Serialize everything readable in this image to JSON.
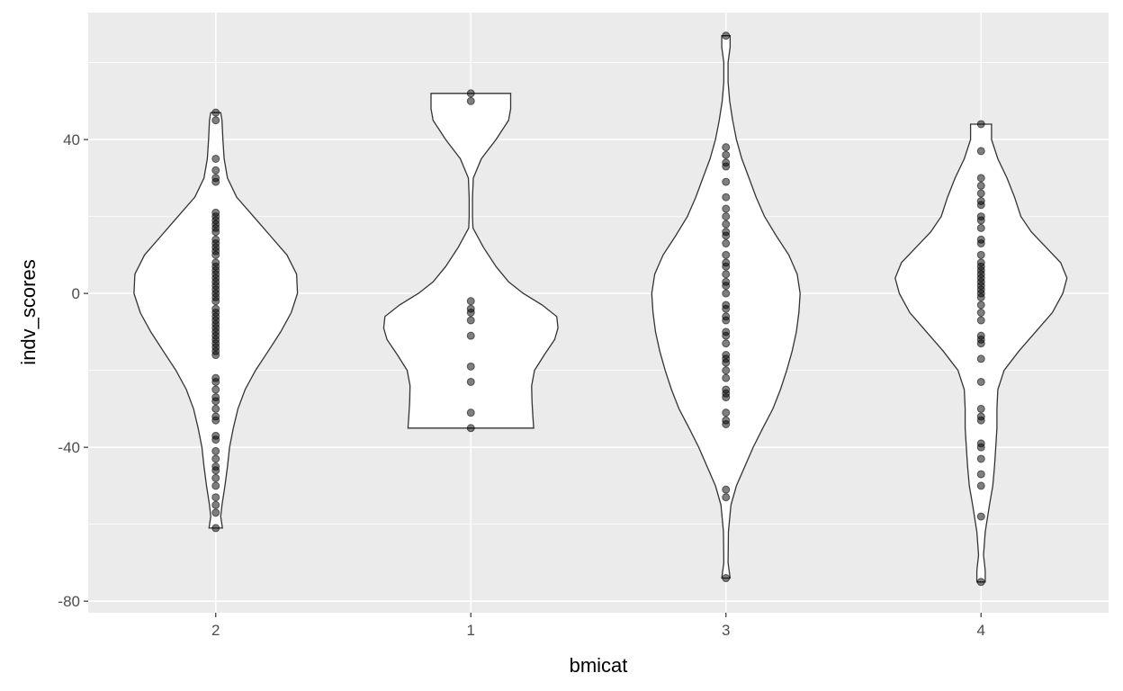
{
  "chart_data": {
    "type": "violin",
    "title": "",
    "xlabel": "bmicat",
    "ylabel": "indv_scores",
    "categories": [
      "2",
      "1",
      "3",
      "4"
    ],
    "y_ticks": [
      -80,
      -40,
      0,
      40
    ],
    "ylim": [
      -83,
      73
    ],
    "grid": true,
    "background": "#ebebeb",
    "violins": [
      {
        "category": "2",
        "min": -61,
        "max": 47,
        "density": [
          [
            -61,
            0.16
          ],
          [
            -58,
            0.12
          ],
          [
            -55,
            0.15
          ],
          [
            -50,
            0.22
          ],
          [
            -45,
            0.28
          ],
          [
            -40,
            0.33
          ],
          [
            -35,
            0.42
          ],
          [
            -30,
            0.53
          ],
          [
            -25,
            0.7
          ],
          [
            -20,
            0.95
          ],
          [
            -15,
            1.25
          ],
          [
            -10,
            1.55
          ],
          [
            -5,
            1.8
          ],
          [
            0,
            1.95
          ],
          [
            5,
            1.93
          ],
          [
            10,
            1.7
          ],
          [
            15,
            1.3
          ],
          [
            20,
            0.9
          ],
          [
            25,
            0.5
          ],
          [
            30,
            0.28
          ],
          [
            35,
            0.2
          ],
          [
            40,
            0.17
          ],
          [
            45,
            0.15
          ],
          [
            47,
            0.12
          ]
        ]
      },
      {
        "category": "1",
        "min": -35,
        "max": 52,
        "density": [
          [
            -35,
            1.5
          ],
          [
            -32,
            1.48
          ],
          [
            -28,
            1.46
          ],
          [
            -24,
            1.45
          ],
          [
            -20,
            1.52
          ],
          [
            -16,
            1.75
          ],
          [
            -12,
            2.0
          ],
          [
            -9,
            2.08
          ],
          [
            -6,
            2.05
          ],
          [
            -3,
            1.7
          ],
          [
            0,
            1.25
          ],
          [
            3,
            0.9
          ],
          [
            7,
            0.6
          ],
          [
            12,
            0.3
          ],
          [
            17,
            0.05
          ],
          [
            20,
            0.04
          ],
          [
            25,
            0.04
          ],
          [
            30,
            0.06
          ],
          [
            35,
            0.25
          ],
          [
            40,
            0.6
          ],
          [
            45,
            0.9
          ],
          [
            48,
            0.95
          ],
          [
            51,
            0.95
          ],
          [
            52,
            0.95
          ]
        ]
      },
      {
        "category": "3",
        "min": -74,
        "max": 67,
        "density": [
          [
            -74,
            0.1
          ],
          [
            -70,
            0.05
          ],
          [
            -62,
            0.06
          ],
          [
            -55,
            0.12
          ],
          [
            -50,
            0.25
          ],
          [
            -45,
            0.45
          ],
          [
            -40,
            0.65
          ],
          [
            -35,
            0.88
          ],
          [
            -30,
            1.12
          ],
          [
            -25,
            1.3
          ],
          [
            -20,
            1.45
          ],
          [
            -15,
            1.58
          ],
          [
            -10,
            1.68
          ],
          [
            -5,
            1.74
          ],
          [
            0,
            1.77
          ],
          [
            5,
            1.7
          ],
          [
            10,
            1.5
          ],
          [
            15,
            1.2
          ],
          [
            20,
            0.92
          ],
          [
            25,
            0.72
          ],
          [
            30,
            0.55
          ],
          [
            35,
            0.38
          ],
          [
            40,
            0.25
          ],
          [
            45,
            0.16
          ],
          [
            50,
            0.09
          ],
          [
            55,
            0.05
          ],
          [
            60,
            0.05
          ],
          [
            64,
            0.1
          ],
          [
            67,
            0.1
          ]
        ]
      },
      {
        "category": "4",
        "min": -75,
        "max": 44,
        "density": [
          [
            -75,
            0.1
          ],
          [
            -72,
            0.1
          ],
          [
            -68,
            0.06
          ],
          [
            -62,
            0.1
          ],
          [
            -55,
            0.2
          ],
          [
            -50,
            0.28
          ],
          [
            -45,
            0.32
          ],
          [
            -40,
            0.35
          ],
          [
            -35,
            0.38
          ],
          [
            -30,
            0.38
          ],
          [
            -25,
            0.4
          ],
          [
            -20,
            0.55
          ],
          [
            -15,
            0.9
          ],
          [
            -10,
            1.3
          ],
          [
            -5,
            1.7
          ],
          [
            0,
            1.95
          ],
          [
            4,
            2.05
          ],
          [
            8,
            1.9
          ],
          [
            12,
            1.55
          ],
          [
            16,
            1.2
          ],
          [
            20,
            0.95
          ],
          [
            25,
            0.8
          ],
          [
            30,
            0.62
          ],
          [
            35,
            0.4
          ],
          [
            40,
            0.25
          ],
          [
            44,
            0.25
          ]
        ]
      }
    ],
    "points": [
      {
        "category": "2",
        "values": [
          47,
          45,
          35,
          32,
          30,
          29,
          21,
          20,
          19,
          18,
          17,
          16,
          14,
          13,
          12,
          11,
          10,
          8,
          7,
          6,
          5,
          4,
          3,
          2,
          1,
          0,
          -1,
          -2,
          -4,
          -5,
          -6,
          -7,
          -8,
          -9,
          -10,
          -11,
          -12,
          -13,
          -14,
          -15,
          -16,
          -22,
          -23,
          -25,
          -27,
          -28,
          -30,
          -32,
          -33,
          -37,
          -38,
          -41,
          -43,
          -45,
          -46,
          -48,
          -50,
          -53,
          -55,
          -57,
          -61
        ]
      },
      {
        "category": "1",
        "values": [
          52,
          50,
          -2,
          -4,
          -5,
          -7,
          -11,
          -19,
          -23,
          -31,
          -35
        ]
      },
      {
        "category": "3",
        "values": [
          67,
          38,
          36,
          34,
          33,
          29,
          25,
          22,
          20,
          18,
          16,
          15,
          13,
          10,
          8,
          7,
          5,
          3,
          2,
          0,
          -3,
          -4,
          -6,
          -7,
          -10,
          -11,
          -13,
          -16,
          -17,
          -18,
          -20,
          -22,
          -25,
          -26,
          -27,
          -31,
          -33,
          -34,
          -51,
          -53,
          -74
        ]
      },
      {
        "category": "4",
        "values": [
          44,
          37,
          30,
          28,
          26,
          24,
          23,
          20,
          19,
          17,
          14,
          13,
          10,
          8,
          7,
          6,
          5,
          4,
          3,
          2,
          1,
          0,
          -1,
          -3,
          -5,
          -7,
          -11,
          -12,
          -13,
          -17,
          -23,
          -30,
          -32,
          -33,
          -39,
          -40,
          -43,
          -47,
          -50,
          -58,
          -75
        ]
      }
    ]
  }
}
